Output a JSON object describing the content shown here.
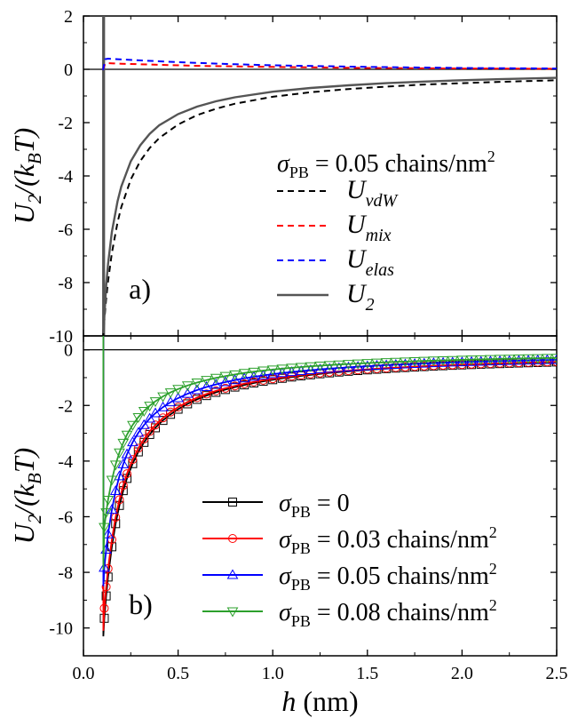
{
  "chart_data": [
    {
      "type": "line",
      "panel_label": "a)",
      "ylabel": {
        "main": "U",
        "sub1": "2",
        "mid": "/(k",
        "sub2": "B",
        "tail": "T)"
      },
      "xlim": [
        0,
        2.5
      ],
      "ylim": [
        -10,
        2
      ],
      "yticks": [
        2,
        0,
        -2,
        -4,
        -6,
        -8,
        -10
      ],
      "ytick_labels": [
        "2",
        "0",
        "-2",
        "-4",
        "-6",
        "-8",
        "-10"
      ],
      "zero_line": true,
      "legend": {
        "title": {
          "sigma": "σ",
          "sub": "PB",
          "text": " = 0.05 chains/nm",
          "sup": "2"
        },
        "placement": "right"
      },
      "series": [
        {
          "name": "U_vdW",
          "label_main": "U",
          "label_sub": "vdW",
          "color": "#000000",
          "dash": "7,5",
          "width": 2,
          "x": [
            0.104,
            0.11,
            0.12,
            0.13,
            0.15,
            0.18,
            0.2,
            0.25,
            0.3,
            0.35,
            0.4,
            0.5,
            0.6,
            0.7,
            0.8,
            1.0,
            1.2,
            1.4,
            1.6,
            1.8,
            2.0,
            2.2,
            2.5
          ],
          "y": [
            -9.99,
            -9.42,
            -8.6,
            -7.95,
            -6.89,
            -5.74,
            -5.17,
            -4.13,
            -3.44,
            -2.95,
            -2.58,
            -2.07,
            -1.72,
            -1.48,
            -1.29,
            -1.03,
            -0.86,
            -0.74,
            -0.65,
            -0.57,
            -0.52,
            -0.47,
            -0.41
          ]
        },
        {
          "name": "U_mix",
          "label_main": "U",
          "label_sub": "mix",
          "color": "#ff0000",
          "dash": "7,5",
          "width": 2,
          "x": [
            0.1,
            0.104,
            0.115,
            0.13,
            0.2,
            0.4,
            0.6,
            0.8,
            1.0,
            1.5,
            2.0,
            2.5
          ],
          "y": [
            0.0,
            0.0,
            0.22,
            0.23,
            0.21,
            0.17,
            0.13,
            0.11,
            0.09,
            0.05,
            0.03,
            0.02
          ]
        },
        {
          "name": "U_elas",
          "label_main": "U",
          "label_sub": "elas",
          "color": "#0000ff",
          "dash": "7,5",
          "width": 2,
          "x": [
            0.1,
            0.104,
            0.115,
            0.13,
            0.2,
            0.4,
            0.6,
            0.8,
            1.0,
            1.5,
            2.0,
            2.5
          ],
          "y": [
            0.0,
            0.0,
            0.38,
            0.4,
            0.37,
            0.3,
            0.24,
            0.19,
            0.15,
            0.09,
            0.05,
            0.03
          ]
        },
        {
          "name": "U_2",
          "label_main": "U",
          "label_sub": "2",
          "color": "#555555",
          "dash": "",
          "width": 2.4,
          "x": [
            0.107,
            0.11,
            0.12,
            0.13,
            0.15,
            0.18,
            0.2,
            0.25,
            0.3,
            0.35,
            0.4,
            0.5,
            0.6,
            0.7,
            0.8,
            1.0,
            1.2,
            1.4,
            1.6,
            1.8,
            2.0,
            2.2,
            2.5
          ],
          "y": [
            -9.9,
            -9.3,
            -8.1,
            -7.3,
            -6.1,
            -4.95,
            -4.4,
            -3.45,
            -2.85,
            -2.42,
            -2.1,
            -1.68,
            -1.4,
            -1.2,
            -1.05,
            -0.84,
            -0.7,
            -0.6,
            -0.52,
            -0.46,
            -0.41,
            -0.37,
            -0.32
          ]
        }
      ],
      "wall": {
        "x": [
          0.103,
          0.108,
          0.11
        ],
        "color": "#555555"
      }
    },
    {
      "type": "line",
      "panel_label": "b)",
      "xlabel": {
        "var": "h",
        "unit": " (nm)"
      },
      "ylabel": {
        "main": "U",
        "sub1": "2",
        "mid": "/(k",
        "sub2": "B",
        "tail": "T)"
      },
      "xlim": [
        0,
        2.5
      ],
      "ylim": [
        -11,
        0.5
      ],
      "xticks": [
        0.0,
        0.5,
        1.0,
        1.5,
        2.0,
        2.5
      ],
      "xtick_labels": [
        "0.0",
        "0.5",
        "1.0",
        "1.5",
        "2.0",
        "2.5"
      ],
      "yticks": [
        0,
        -2,
        -4,
        -6,
        -8,
        -10
      ],
      "ytick_labels": [
        "0",
        "-2",
        "-4",
        "-6",
        "-8",
        "-10"
      ],
      "zero_line": true,
      "legend": {
        "placement": "lower-right"
      },
      "series": [
        {
          "name": "σPB = 0",
          "label_tail": " = 0",
          "label_sup": "",
          "marker": "square",
          "color": "#000000",
          "min": -10.3,
          "A": 1.06,
          "c": 0.015
        },
        {
          "name": "σPB = 0.03 chains/nm2",
          "label_tail": " = 0.03 chains/nm",
          "label_sup": "2",
          "marker": "circle",
          "color": "#ff0000",
          "min": -10.1,
          "A": 1.02,
          "c": 0.02
        },
        {
          "name": "σPB = 0.05 chains/nm2",
          "label_tail": " = 0.05 chains/nm",
          "label_sup": "2",
          "marker": "triangle-up",
          "color": "#0000ff",
          "min": -8.5,
          "A": 0.86,
          "c": 0.015
        },
        {
          "name": "σPB = 0.08 chains/nm2",
          "label_tail": " = 0.08 chains/nm",
          "label_sup": "2",
          "marker": "triangle-down",
          "color": "#2ca02c",
          "min": -7.9,
          "A": 0.7,
          "c": 0.01
        }
      ],
      "x_markers": [
        0.11,
        0.12,
        0.13,
        0.15,
        0.17,
        0.19,
        0.21,
        0.23,
        0.26,
        0.29,
        0.32,
        0.35,
        0.38,
        0.42,
        0.46,
        0.5,
        0.55,
        0.6,
        0.65,
        0.7,
        0.75,
        0.8,
        0.85,
        0.9,
        0.95,
        1.0,
        1.05,
        1.1,
        1.15,
        1.2,
        1.25,
        1.3,
        1.35,
        1.4,
        1.45,
        1.5,
        1.55,
        1.6,
        1.65,
        1.7,
        1.75,
        1.8,
        1.85,
        1.9,
        1.95,
        2.0,
        2.05,
        2.1,
        2.15,
        2.2,
        2.25,
        2.3,
        2.35,
        2.4,
        2.45,
        2.5
      ]
    }
  ]
}
